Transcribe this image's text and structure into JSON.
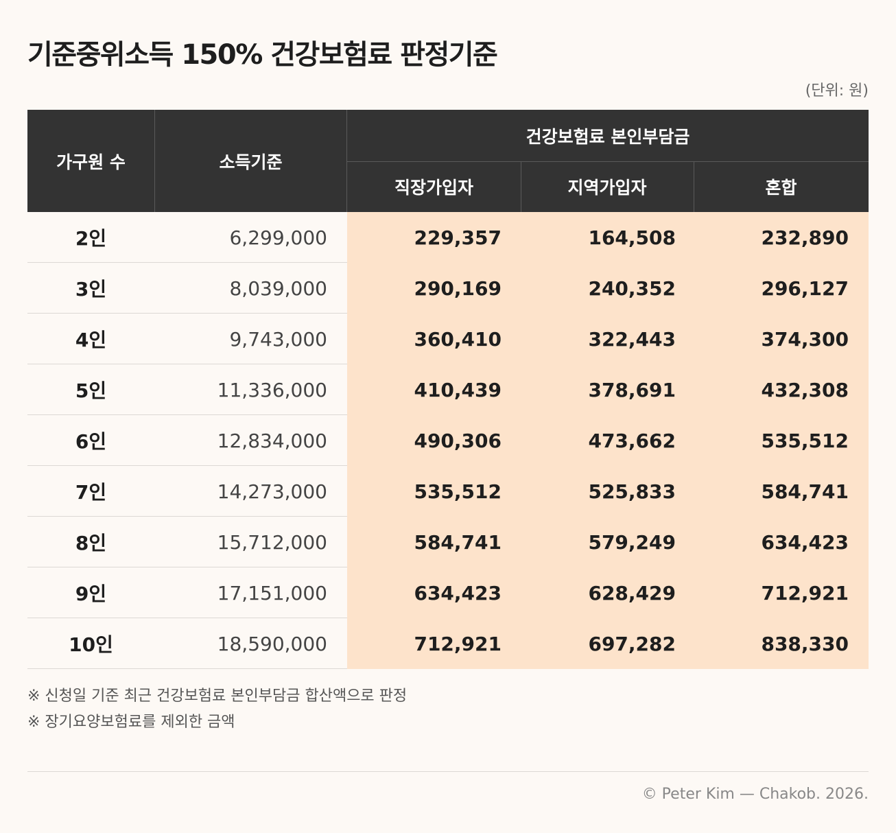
{
  "title": "기준중위소득 150% 건강보험료 판정기준",
  "unit": "(단위: 원)",
  "table": {
    "headers": {
      "household_size": "가구원 수",
      "income_criteria": "소득기준",
      "premium_group": "건강보험료 본인부담금",
      "employee": "직장가입자",
      "regional": "지역가입자",
      "mixed": "혼합"
    },
    "rows": [
      {
        "size": "2인",
        "income": "6,299,000",
        "employee": "229,357",
        "regional": "164,508",
        "mixed": "232,890"
      },
      {
        "size": "3인",
        "income": "8,039,000",
        "employee": "290,169",
        "regional": "240,352",
        "mixed": "296,127"
      },
      {
        "size": "4인",
        "income": "9,743,000",
        "employee": "360,410",
        "regional": "322,443",
        "mixed": "374,300"
      },
      {
        "size": "5인",
        "income": "11,336,000",
        "employee": "410,439",
        "regional": "378,691",
        "mixed": "432,308"
      },
      {
        "size": "6인",
        "income": "12,834,000",
        "employee": "490,306",
        "regional": "473,662",
        "mixed": "535,512"
      },
      {
        "size": "7인",
        "income": "14,273,000",
        "employee": "535,512",
        "regional": "525,833",
        "mixed": "584,741"
      },
      {
        "size": "8인",
        "income": "15,712,000",
        "employee": "584,741",
        "regional": "579,249",
        "mixed": "634,423"
      },
      {
        "size": "9인",
        "income": "17,151,000",
        "employee": "634,423",
        "regional": "628,429",
        "mixed": "712,921"
      },
      {
        "size": "10인",
        "income": "18,590,000",
        "employee": "712,921",
        "regional": "697,282",
        "mixed": "838,330"
      }
    ]
  },
  "notes": [
    "※ 신청일 기준 최근 건강보험료 본인부담금 합산액으로 판정",
    "※ 장기요양보험료를 제외한 금액"
  ],
  "footer": "© Peter Kim — Chakob. 2026.",
  "colors": {
    "background": "#fdf9f5",
    "header_bg": "#333333",
    "highlight": "#fde3cb"
  }
}
